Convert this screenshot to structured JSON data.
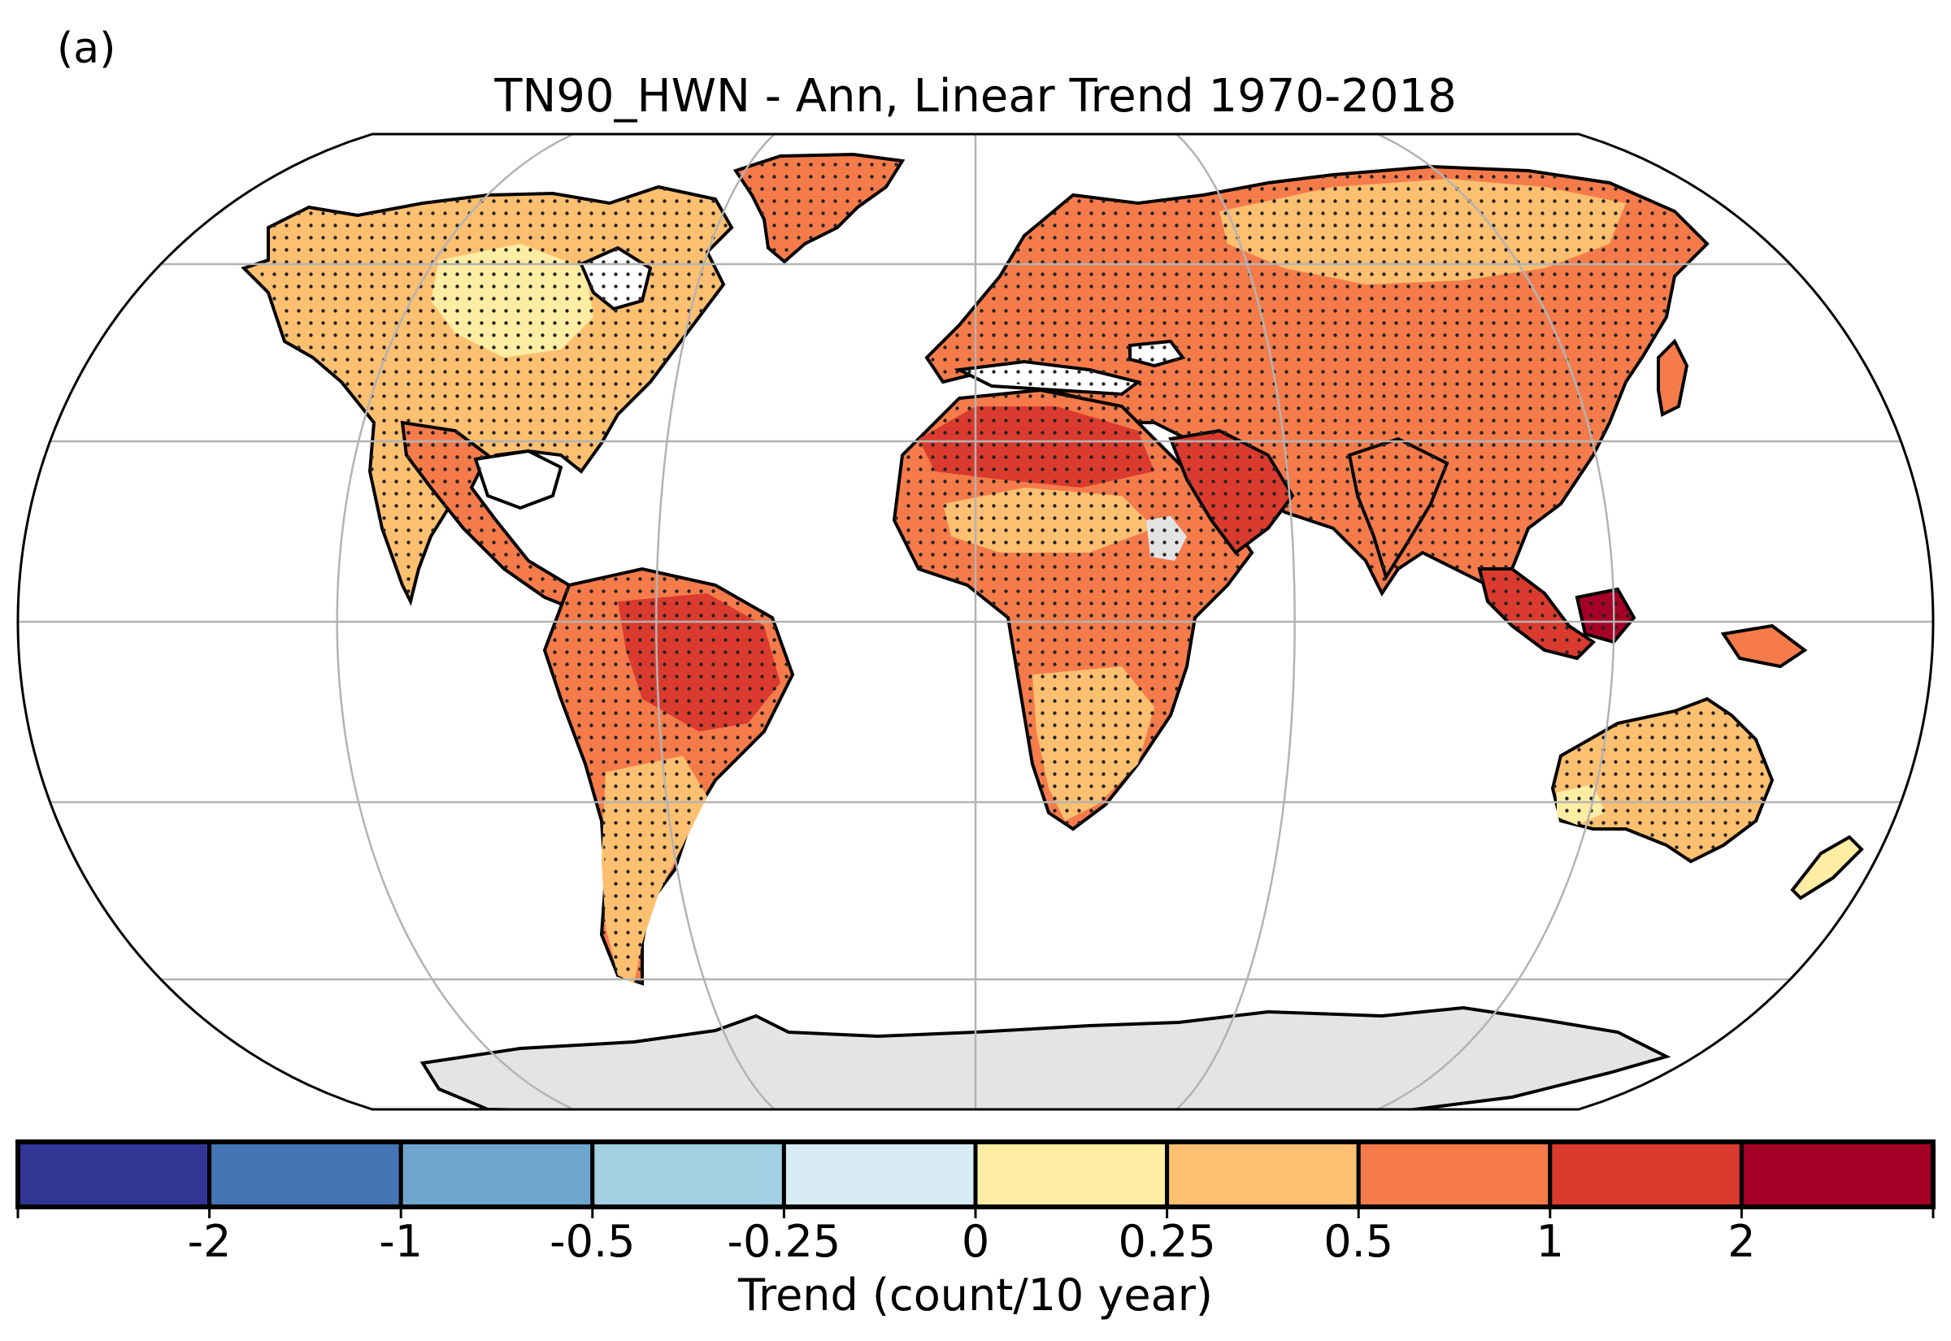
{
  "panel_label": "(a)",
  "title": "TN90_HWN - Ann, Linear Trend 1970-2018",
  "colorbar": {
    "label": "Trend (count/10 year)",
    "tick_labels": [
      "-2",
      "-1",
      "-0.5",
      "-0.25",
      "0",
      "0.25",
      "0.5",
      "1",
      "2"
    ],
    "bins": [
      {
        "range": "< -2",
        "color": "#313695"
      },
      {
        "range": "-2 to -1",
        "color": "#4575b4"
      },
      {
        "range": "-1 to -0.5",
        "color": "#6fa6cd"
      },
      {
        "range": "-0.5 to -0.25",
        "color": "#a3d0e3"
      },
      {
        "range": "-0.25 to 0",
        "color": "#d6ecf2"
      },
      {
        "range": "0 to 0.25",
        "color": "#feeda2"
      },
      {
        "range": "0.25 to 0.5",
        "color": "#fdbf70"
      },
      {
        "range": "0.5 to 1",
        "color": "#f57b4b"
      },
      {
        "range": "1 to 2",
        "color": "#da3b2e"
      },
      {
        "range": "> 2",
        "color": "#a50026"
      }
    ]
  },
  "map": {
    "projection": "Robinson",
    "graticule": "30 degrees",
    "stippling": "significant trend",
    "missing_data_color": "#e3e3e3",
    "regions": [
      {
        "name": "North America (Canada)",
        "trend_bin": "0.25 to 0.5"
      },
      {
        "name": "Central Canada",
        "trend_bin": "0 to 0.25"
      },
      {
        "name": "United States",
        "trend_bin": "0.25 to 0.5"
      },
      {
        "name": "Central America & Mexico",
        "trend_bin": "0.5 to 1"
      },
      {
        "name": "Greenland",
        "trend_bin": "0.5 to 1"
      },
      {
        "name": "Amazon Basin",
        "trend_bin": "1 to 2"
      },
      {
        "name": "Southern South America",
        "trend_bin": "0.25 to 0.5"
      },
      {
        "name": "Europe",
        "trend_bin": "0.5 to 1"
      },
      {
        "name": "Sahara",
        "trend_bin": "1 to 2"
      },
      {
        "name": "Sahel",
        "trend_bin": "0.25 to 0.5"
      },
      {
        "name": "Central & East Africa",
        "trend_bin": "0.5 to 1"
      },
      {
        "name": "Southern Africa",
        "trend_bin": "0.25 to 0.5"
      },
      {
        "name": "Arabian Peninsula",
        "trend_bin": "1 to 2"
      },
      {
        "name": "Northern Asia",
        "trend_bin": "0.5 to 1"
      },
      {
        "name": "Central Asia",
        "trend_bin": "0.5 to 1"
      },
      {
        "name": "India & China",
        "trend_bin": "0.5 to 1"
      },
      {
        "name": "Maritime Southeast Asia",
        "trend_bin": "1 to 2"
      },
      {
        "name": "Australia",
        "trend_bin": "0.25 to 0.5"
      },
      {
        "name": "New Zealand",
        "trend_bin": "0 to 0.25"
      },
      {
        "name": "Antarctica",
        "trend_bin": "no data"
      },
      {
        "name": "Ethiopian Highlands",
        "trend_bin": "no data"
      }
    ]
  }
}
